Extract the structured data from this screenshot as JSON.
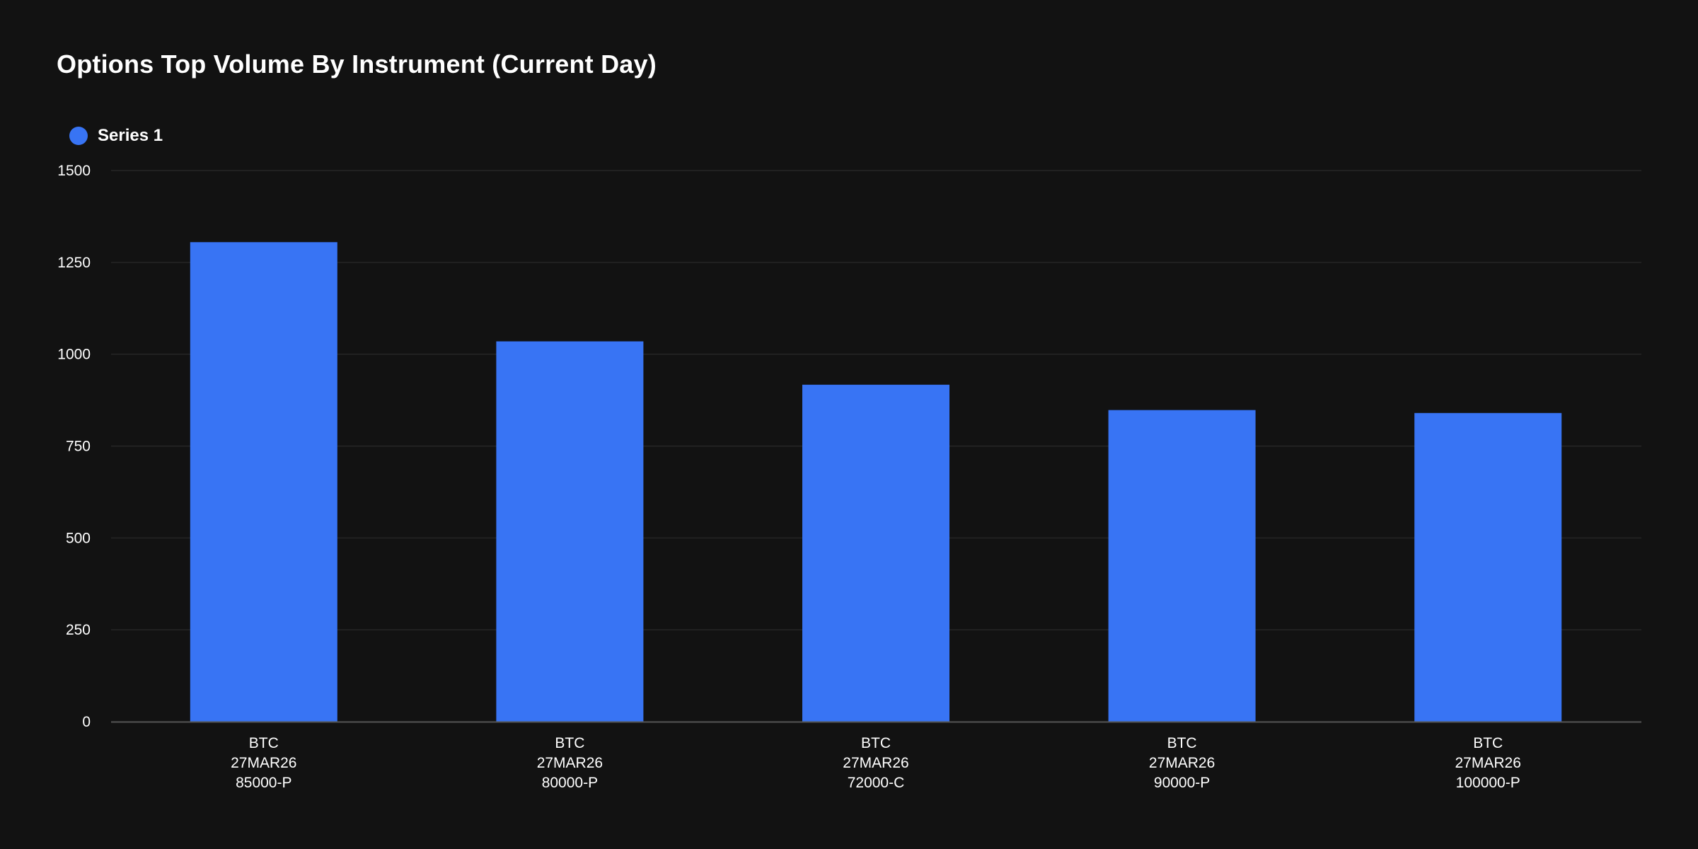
{
  "chart_data": {
    "type": "bar",
    "title": "Options Top Volume By Instrument (Current Day)",
    "xlabel": "",
    "ylabel": "",
    "ylim": [
      0,
      1500
    ],
    "yticks": [
      "0",
      "250",
      "500",
      "750",
      "1000",
      "1250",
      "1500"
    ],
    "grid": true,
    "legend_position": "top-left",
    "categories": [
      [
        "BTC",
        "27MAR26",
        "85000-P"
      ],
      [
        "BTC",
        "27MAR26",
        "80000-P"
      ],
      [
        "BTC",
        "27MAR26",
        "72000-C"
      ],
      [
        "BTC",
        "27MAR26",
        "90000-P"
      ],
      [
        "BTC",
        "27MAR26",
        "100000-P"
      ]
    ],
    "series": [
      {
        "name": "Series 1",
        "color": "#3874F4",
        "values": [
          1305,
          1035,
          917,
          848,
          840
        ]
      }
    ]
  },
  "colors": {
    "background": "#121212",
    "grid": "#262626",
    "axis": "#555555",
    "text": "#ffffff"
  }
}
